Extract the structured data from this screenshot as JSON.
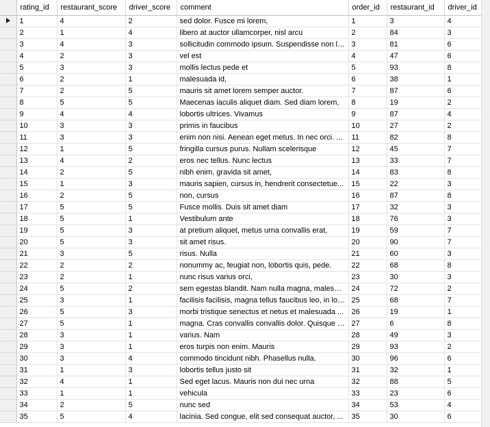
{
  "columns": [
    "rating_id",
    "restaurant_score",
    "driver_score",
    "comment",
    "order_id",
    "restaurant_id",
    "driver_id"
  ],
  "rows": [
    [
      "1",
      "4",
      "2",
      "sed dolor. Fusce mi lorem,",
      "1",
      "3",
      "4"
    ],
    [
      "2",
      "1",
      "4",
      "libero at auctor ullamcorper, nisl arcu",
      "2",
      "84",
      "3"
    ],
    [
      "3",
      "4",
      "3",
      "sollicitudin commodo ipsum. Suspendisse non leo....",
      "3",
      "81",
      "6"
    ],
    [
      "4",
      "2",
      "3",
      "vel est",
      "4",
      "47",
      "6"
    ],
    [
      "5",
      "3",
      "3",
      "mollis lectus pede et",
      "5",
      "93",
      "8"
    ],
    [
      "6",
      "2",
      "1",
      "malesuada id,",
      "6",
      "38",
      "1"
    ],
    [
      "7",
      "2",
      "5",
      "mauris sit amet lorem semper auctor.",
      "7",
      "87",
      "6"
    ],
    [
      "8",
      "5",
      "5",
      "Maecenas iaculis aliquet diam. Sed diam lorem,",
      "8",
      "19",
      "2"
    ],
    [
      "9",
      "4",
      "4",
      "lobortis ultrices. Vivamus",
      "9",
      "87",
      "4"
    ],
    [
      "10",
      "3",
      "3",
      "primis in faucibus",
      "10",
      "27",
      "2"
    ],
    [
      "11",
      "3",
      "3",
      "enim non nisi. Aenean eget metus. In nec orci. ...",
      "11",
      "82",
      "8"
    ],
    [
      "12",
      "1",
      "5",
      "fringilla cursus purus. Nullam scelerisque",
      "12",
      "45",
      "7"
    ],
    [
      "13",
      "4",
      "2",
      "eros nec tellus. Nunc lectus",
      "13",
      "33",
      "7"
    ],
    [
      "14",
      "2",
      "5",
      "nibh enim, gravida sit amet,",
      "14",
      "83",
      "8"
    ],
    [
      "15",
      "1",
      "3",
      "mauris sapien, cursus in, hendrerit consectetue...",
      "15",
      "22",
      "3"
    ],
    [
      "16",
      "2",
      "5",
      "non, cursus",
      "16",
      "87",
      "8"
    ],
    [
      "17",
      "5",
      "5",
      "Fusce mollis. Duis sit amet diam",
      "17",
      "32",
      "3"
    ],
    [
      "18",
      "5",
      "1",
      "Vestibulum ante",
      "18",
      "76",
      "3"
    ],
    [
      "19",
      "5",
      "3",
      "at pretium aliquet, metus urna convallis erat,",
      "19",
      "59",
      "7"
    ],
    [
      "20",
      "5",
      "3",
      "sit amet risus.",
      "20",
      "90",
      "7"
    ],
    [
      "21",
      "3",
      "5",
      "risus. Nulla",
      "21",
      "60",
      "3"
    ],
    [
      "22",
      "2",
      "2",
      "nonummy ac, feugiat non, lobortis quis, pede.",
      "22",
      "68",
      "8"
    ],
    [
      "23",
      "2",
      "1",
      "nunc risus varius orci,",
      "23",
      "30",
      "3"
    ],
    [
      "24",
      "5",
      "2",
      "sem egestas blandit. Nam nulla magna, malesuada",
      "24",
      "72",
      "2"
    ],
    [
      "25",
      "3",
      "1",
      "facilisis facilisis, magna tellus faucibus leo, in lob...",
      "25",
      "68",
      "7"
    ],
    [
      "26",
      "5",
      "3",
      "morbi tristique senectus et netus et malesuada ...",
      "26",
      "19",
      "1"
    ],
    [
      "27",
      "5",
      "1",
      "magna. Cras convallis convallis dolor. Quisque ti...",
      "27",
      "6",
      "8"
    ],
    [
      "28",
      "3",
      "1",
      "varius. Nam",
      "28",
      "49",
      "3"
    ],
    [
      "29",
      "3",
      "1",
      "eros turpis non enim. Mauris",
      "29",
      "93",
      "2"
    ],
    [
      "30",
      "3",
      "4",
      "commodo tincidunt nibh. Phasellus nulla.",
      "30",
      "96",
      "6"
    ],
    [
      "31",
      "1",
      "3",
      "lobortis tellus justo sit",
      "31",
      "32",
      "1"
    ],
    [
      "32",
      "4",
      "1",
      "Sed eget lacus. Mauris non dui nec urna",
      "32",
      "88",
      "5"
    ],
    [
      "33",
      "1",
      "1",
      "vehicula",
      "33",
      "23",
      "6"
    ],
    [
      "34",
      "2",
      "5",
      "nunc sed",
      "34",
      "53",
      "4"
    ],
    [
      "35",
      "5",
      "4",
      "lacinia. Sed congue, elit sed consequat auctor, ...",
      "35",
      "30",
      "6"
    ]
  ],
  "current_row_icon": "current-row-arrow-icon"
}
